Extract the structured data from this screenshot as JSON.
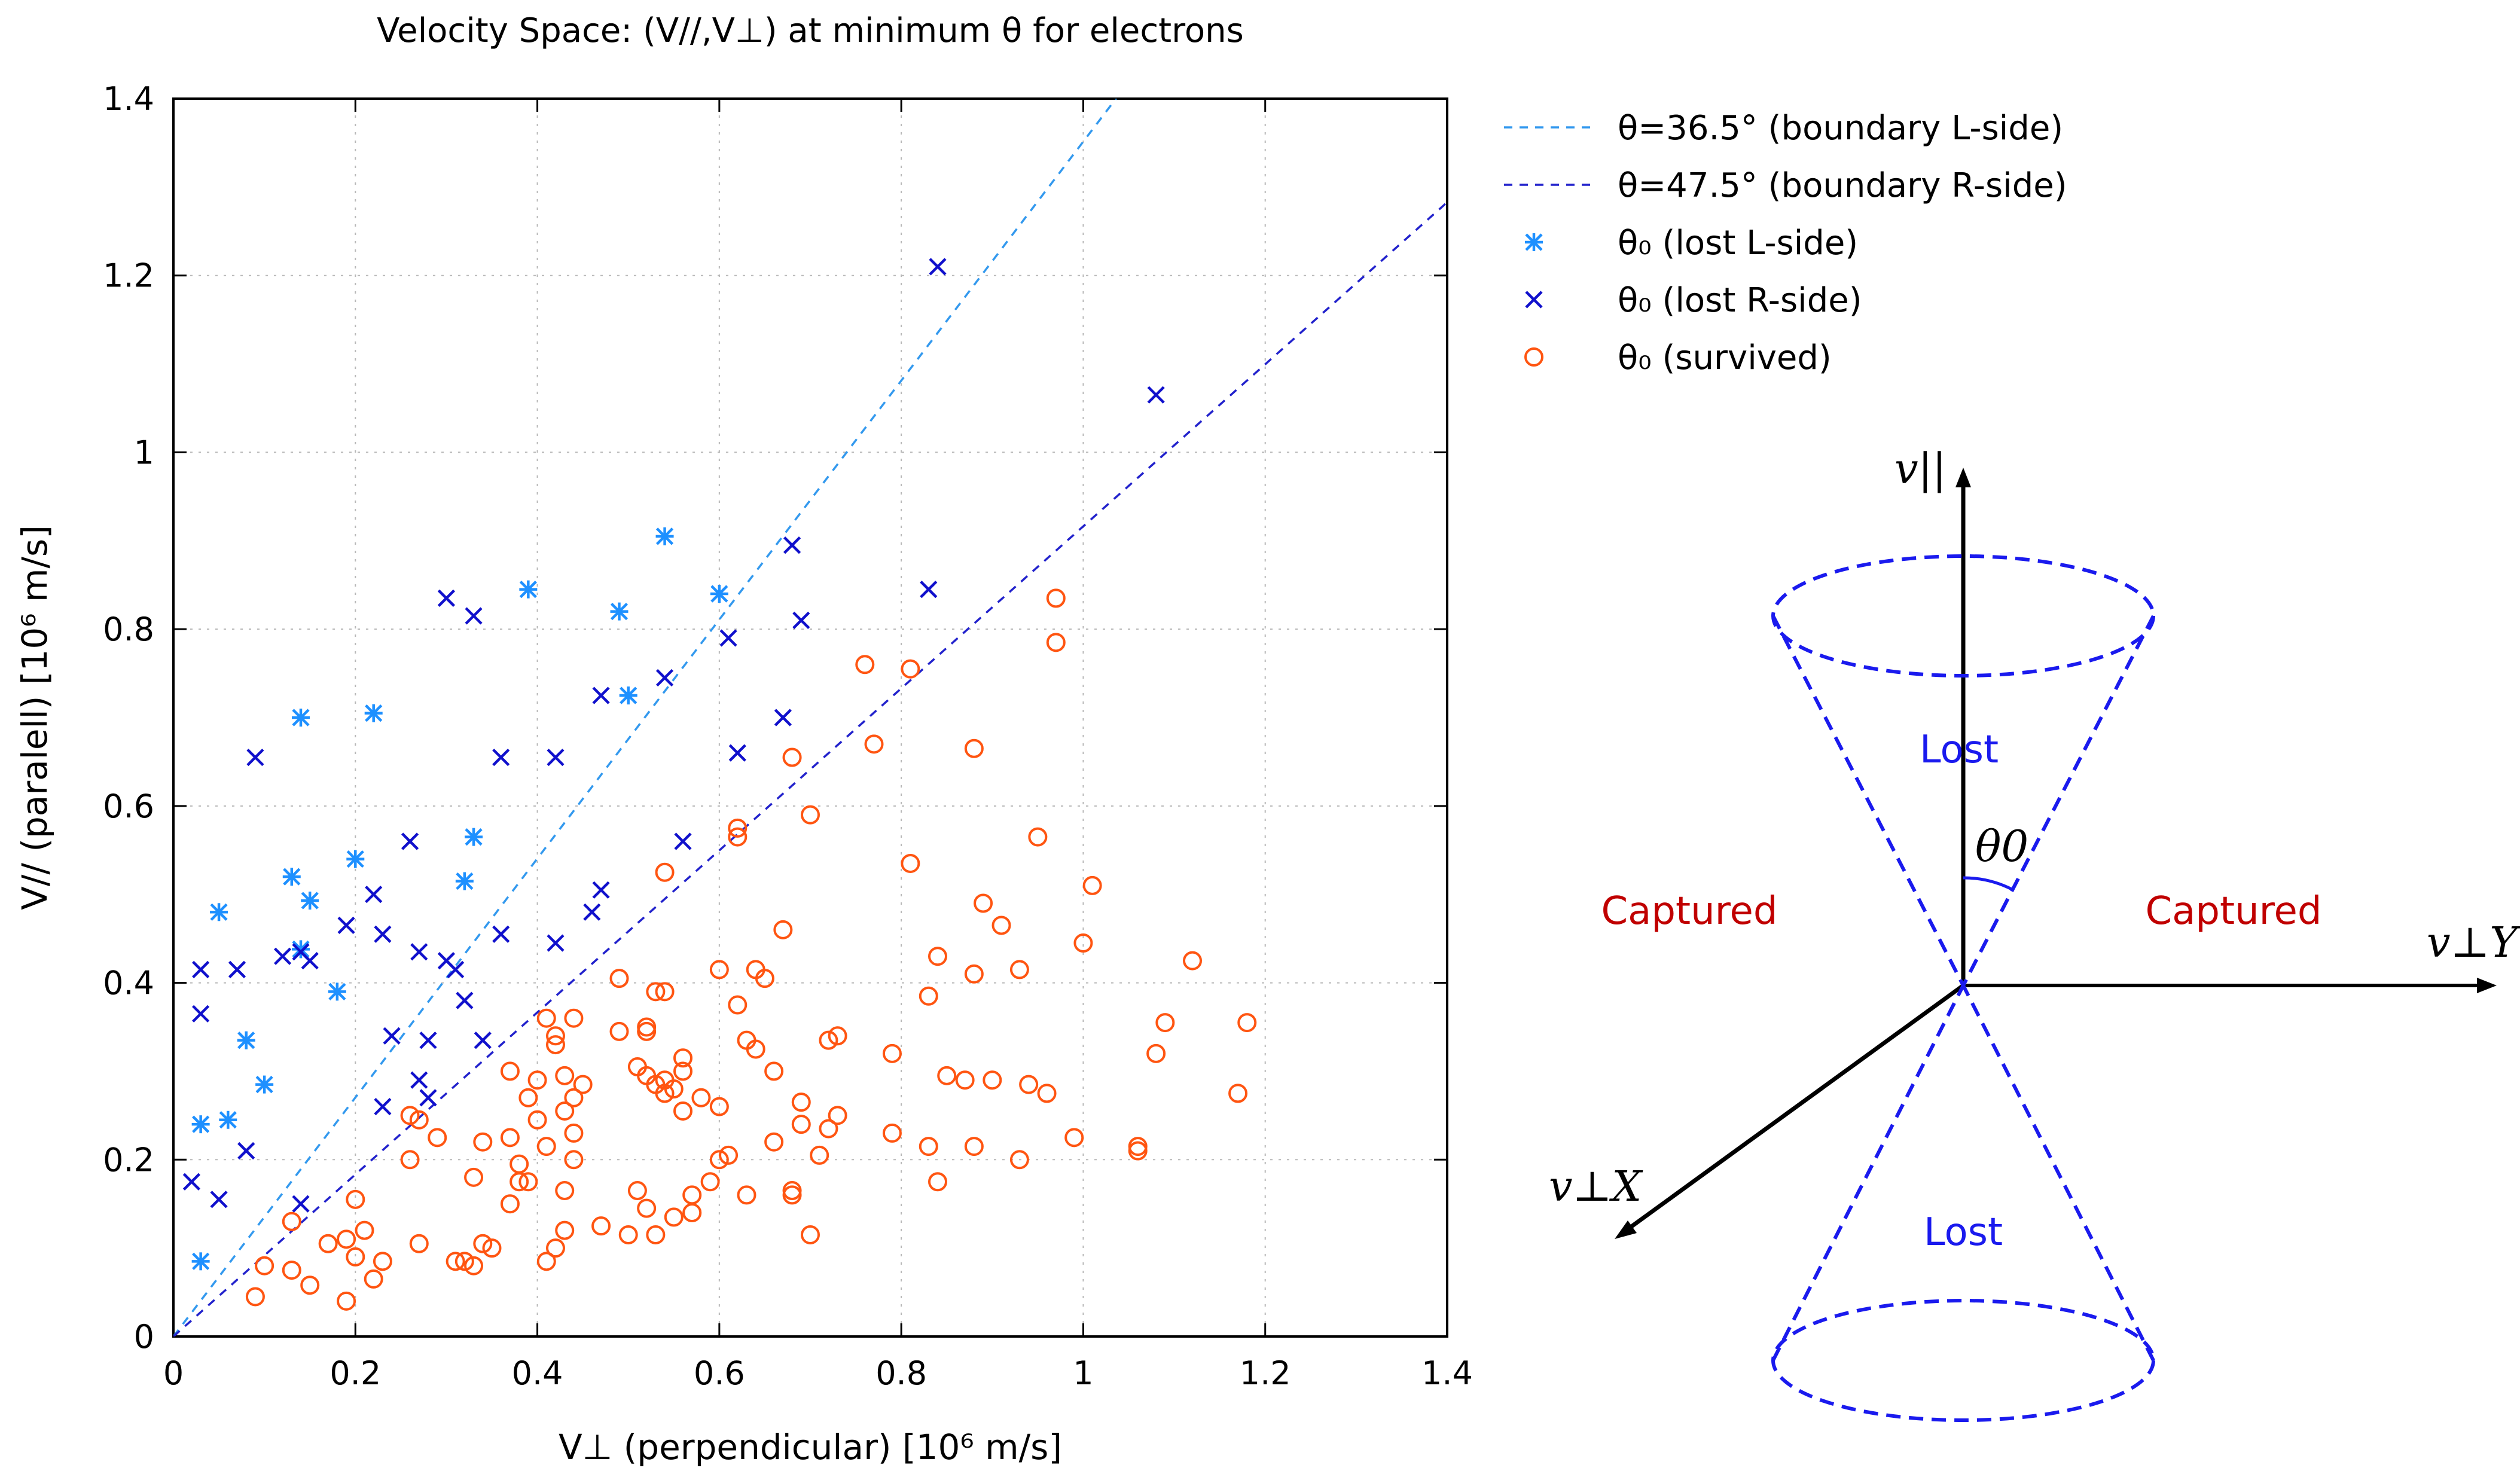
{
  "chart_data": {
    "type": "scatter",
    "title": "Velocity Space: (V//,V⊥) at minimum θ for electrons",
    "xlabel": "V⊥ (perpendicular) [10⁶ m/s]",
    "ylabel": "V// (paralell) [10⁶ m/s]",
    "xlim": [
      0,
      1.4
    ],
    "ylim": [
      0,
      1.4
    ],
    "grid": true,
    "legend_position": "right",
    "xticks": [
      "0",
      "0.2",
      "0.4",
      "0.6",
      "0.8",
      "1",
      "1.2",
      "1.4"
    ],
    "yticks": [
      "0",
      "0.2",
      "0.4",
      "0.6",
      "0.8",
      "1",
      "1.2",
      "1.4"
    ],
    "lines": [
      {
        "name": "θ=36.5° (boundary L-side)",
        "color": "#3399ee",
        "slope": 1.3514
      },
      {
        "name": "θ=47.5° (boundary R-side)",
        "color": "#2222cc",
        "slope": 0.9163
      }
    ],
    "series": [
      {
        "name": "θ₀ (lost L-side)",
        "marker": "asterisk",
        "color": "#1e90ff",
        "points": [
          [
            0.03,
            0.085
          ],
          [
            0.03,
            0.24
          ],
          [
            0.05,
            0.48
          ],
          [
            0.06,
            0.245
          ],
          [
            0.08,
            0.335
          ],
          [
            0.1,
            0.285
          ],
          [
            0.13,
            0.52
          ],
          [
            0.14,
            0.7
          ],
          [
            0.14,
            0.438
          ],
          [
            0.15,
            0.493
          ],
          [
            0.18,
            0.39
          ],
          [
            0.2,
            0.54
          ],
          [
            0.22,
            0.705
          ],
          [
            0.32,
            0.515
          ],
          [
            0.33,
            0.565
          ],
          [
            0.39,
            0.845
          ],
          [
            0.49,
            0.82
          ],
          [
            0.5,
            0.725
          ],
          [
            0.54,
            0.905
          ],
          [
            0.6,
            0.84
          ]
        ]
      },
      {
        "name": "θ₀ (lost R-side)",
        "marker": "x",
        "color": "#1010cc",
        "points": [
          [
            0.02,
            0.175
          ],
          [
            0.03,
            0.415
          ],
          [
            0.03,
            0.365
          ],
          [
            0.05,
            0.155
          ],
          [
            0.07,
            0.415
          ],
          [
            0.08,
            0.21
          ],
          [
            0.09,
            0.655
          ],
          [
            0.12,
            0.43
          ],
          [
            0.14,
            0.435
          ],
          [
            0.14,
            0.15
          ],
          [
            0.15,
            0.425
          ],
          [
            0.19,
            0.465
          ],
          [
            0.22,
            0.5
          ],
          [
            0.23,
            0.26
          ],
          [
            0.23,
            0.455
          ],
          [
            0.24,
            0.34
          ],
          [
            0.26,
            0.56
          ],
          [
            0.27,
            0.435
          ],
          [
            0.27,
            0.29
          ],
          [
            0.28,
            0.335
          ],
          [
            0.28,
            0.27
          ],
          [
            0.3,
            0.425
          ],
          [
            0.3,
            0.835
          ],
          [
            0.31,
            0.415
          ],
          [
            0.32,
            0.38
          ],
          [
            0.33,
            0.815
          ],
          [
            0.34,
            0.335
          ],
          [
            0.36,
            0.655
          ],
          [
            0.36,
            0.455
          ],
          [
            0.42,
            0.445
          ],
          [
            0.42,
            0.655
          ],
          [
            0.46,
            0.48
          ],
          [
            0.47,
            0.505
          ],
          [
            0.47,
            0.725
          ],
          [
            0.54,
            0.745
          ],
          [
            0.56,
            0.56
          ],
          [
            0.61,
            0.79
          ],
          [
            0.62,
            0.66
          ],
          [
            0.67,
            0.7
          ],
          [
            0.68,
            0.895
          ],
          [
            0.69,
            0.81
          ],
          [
            0.83,
            0.845
          ],
          [
            0.84,
            1.21
          ],
          [
            1.08,
            1.065
          ]
        ]
      },
      {
        "name": "θ₀ (survived)",
        "marker": "circle",
        "color": "#ff5511",
        "points": [
          [
            0.09,
            0.045
          ],
          [
            0.1,
            0.08
          ],
          [
            0.13,
            0.075
          ],
          [
            0.13,
            0.13
          ],
          [
            0.15,
            0.058
          ],
          [
            0.17,
            0.105
          ],
          [
            0.19,
            0.04
          ],
          [
            0.19,
            0.11
          ],
          [
            0.2,
            0.09
          ],
          [
            0.2,
            0.155
          ],
          [
            0.21,
            0.12
          ],
          [
            0.22,
            0.065
          ],
          [
            0.23,
            0.085
          ],
          [
            0.26,
            0.2
          ],
          [
            0.26,
            0.25
          ],
          [
            0.27,
            0.245
          ],
          [
            0.27,
            0.105
          ],
          [
            0.29,
            0.225
          ],
          [
            0.31,
            0.085
          ],
          [
            0.32,
            0.085
          ],
          [
            0.33,
            0.18
          ],
          [
            0.33,
            0.08
          ],
          [
            0.34,
            0.22
          ],
          [
            0.34,
            0.105
          ],
          [
            0.35,
            0.1
          ],
          [
            0.37,
            0.3
          ],
          [
            0.37,
            0.15
          ],
          [
            0.37,
            0.225
          ],
          [
            0.38,
            0.195
          ],
          [
            0.38,
            0.175
          ],
          [
            0.39,
            0.27
          ],
          [
            0.39,
            0.175
          ],
          [
            0.4,
            0.29
          ],
          [
            0.4,
            0.245
          ],
          [
            0.41,
            0.36
          ],
          [
            0.41,
            0.215
          ],
          [
            0.41,
            0.085
          ],
          [
            0.42,
            0.1
          ],
          [
            0.42,
            0.34
          ],
          [
            0.42,
            0.33
          ],
          [
            0.43,
            0.165
          ],
          [
            0.43,
            0.12
          ],
          [
            0.43,
            0.295
          ],
          [
            0.43,
            0.255
          ],
          [
            0.44,
            0.27
          ],
          [
            0.44,
            0.23
          ],
          [
            0.44,
            0.2
          ],
          [
            0.44,
            0.36
          ],
          [
            0.45,
            0.285
          ],
          [
            0.47,
            0.125
          ],
          [
            0.49,
            0.405
          ],
          [
            0.49,
            0.345
          ],
          [
            0.5,
            0.115
          ],
          [
            0.51,
            0.305
          ],
          [
            0.51,
            0.165
          ],
          [
            0.52,
            0.35
          ],
          [
            0.52,
            0.345
          ],
          [
            0.52,
            0.295
          ],
          [
            0.52,
            0.145
          ],
          [
            0.53,
            0.39
          ],
          [
            0.53,
            0.285
          ],
          [
            0.53,
            0.115
          ],
          [
            0.54,
            0.29
          ],
          [
            0.54,
            0.275
          ],
          [
            0.54,
            0.39
          ],
          [
            0.54,
            0.525
          ],
          [
            0.55,
            0.135
          ],
          [
            0.55,
            0.28
          ],
          [
            0.56,
            0.255
          ],
          [
            0.56,
            0.3
          ],
          [
            0.56,
            0.315
          ],
          [
            0.57,
            0.16
          ],
          [
            0.57,
            0.14
          ],
          [
            0.58,
            0.27
          ],
          [
            0.59,
            0.175
          ],
          [
            0.6,
            0.2
          ],
          [
            0.6,
            0.26
          ],
          [
            0.6,
            0.415
          ],
          [
            0.61,
            0.205
          ],
          [
            0.62,
            0.375
          ],
          [
            0.62,
            0.565
          ],
          [
            0.62,
            0.575
          ],
          [
            0.63,
            0.335
          ],
          [
            0.63,
            0.16
          ],
          [
            0.64,
            0.415
          ],
          [
            0.64,
            0.325
          ],
          [
            0.65,
            0.405
          ],
          [
            0.66,
            0.3
          ],
          [
            0.66,
            0.22
          ],
          [
            0.67,
            0.46
          ],
          [
            0.68,
            0.655
          ],
          [
            0.68,
            0.165
          ],
          [
            0.68,
            0.16
          ],
          [
            0.69,
            0.24
          ],
          [
            0.69,
            0.265
          ],
          [
            0.7,
            0.115
          ],
          [
            0.7,
            0.59
          ],
          [
            0.71,
            0.205
          ],
          [
            0.72,
            0.235
          ],
          [
            0.72,
            0.335
          ],
          [
            0.73,
            0.34
          ],
          [
            0.73,
            0.25
          ],
          [
            0.76,
            0.76
          ],
          [
            0.77,
            0.67
          ],
          [
            0.79,
            0.32
          ],
          [
            0.79,
            0.23
          ],
          [
            0.81,
            0.535
          ],
          [
            0.81,
            0.755
          ],
          [
            0.83,
            0.385
          ],
          [
            0.83,
            0.215
          ],
          [
            0.84,
            0.43
          ],
          [
            0.84,
            0.175
          ],
          [
            0.85,
            0.295
          ],
          [
            0.87,
            0.29
          ],
          [
            0.88,
            0.215
          ],
          [
            0.88,
            0.665
          ],
          [
            0.88,
            0.41
          ],
          [
            0.89,
            0.49
          ],
          [
            0.9,
            0.29
          ],
          [
            0.91,
            0.465
          ],
          [
            0.93,
            0.2
          ],
          [
            0.93,
            0.415
          ],
          [
            0.94,
            0.285
          ],
          [
            0.95,
            0.565
          ],
          [
            0.96,
            0.275
          ],
          [
            0.97,
            0.785
          ],
          [
            0.97,
            0.835
          ],
          [
            0.99,
            0.225
          ],
          [
            1.0,
            0.445
          ],
          [
            1.01,
            0.51
          ],
          [
            1.06,
            0.215
          ],
          [
            1.06,
            0.21
          ],
          [
            1.08,
            0.32
          ],
          [
            1.09,
            0.355
          ],
          [
            1.12,
            0.425
          ],
          [
            1.17,
            0.275
          ],
          [
            1.18,
            0.355
          ]
        ]
      }
    ]
  },
  "diagram": {
    "axis_parallel": "v||",
    "axis_perp_y": "v⊥Y",
    "axis_perp_x": "v⊥X",
    "angle_label": "θ0",
    "lost_top": "Lost",
    "lost_bottom": "Lost",
    "captured_left": "Captured",
    "captured_right": "Captured",
    "cone_color": "#1a1aee",
    "captured_color": "#c00000"
  }
}
